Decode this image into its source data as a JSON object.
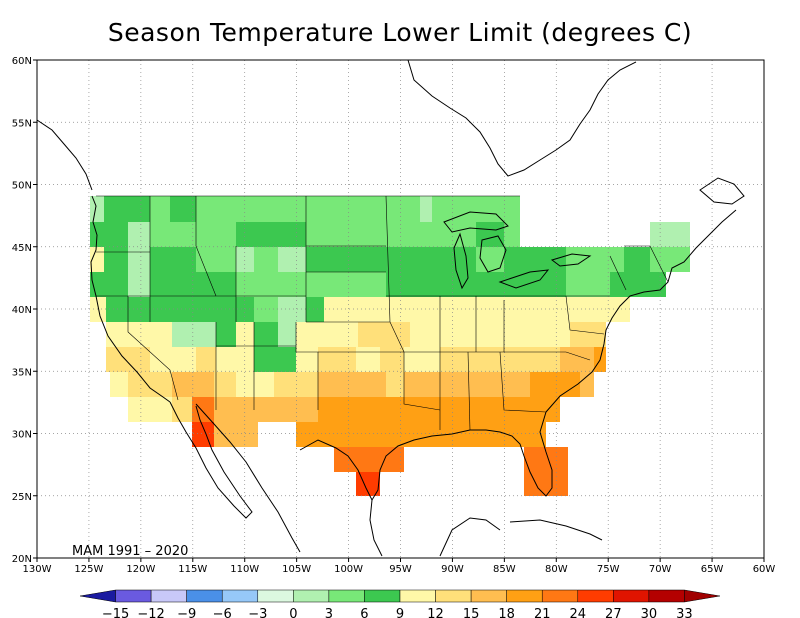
{
  "title": "Season Temperature Lower Limit (degrees C)",
  "period_label": "MAM 1991 – 2020",
  "lon_ticks": [
    "130W",
    "125W",
    "120W",
    "115W",
    "110W",
    "105W",
    "100W",
    "95W",
    "90W",
    "85W",
    "80W",
    "75W",
    "70W",
    "65W",
    "60W"
  ],
  "lat_ticks": [
    "60N",
    "55N",
    "50N",
    "45N",
    "40N",
    "35N",
    "30N",
    "25N",
    "20N"
  ],
  "colorbar": {
    "labels": [
      "-15",
      "-12",
      "-9",
      "-6",
      "-3",
      "0",
      "3",
      "6",
      "9",
      "12",
      "15",
      "18",
      "21",
      "24",
      "27",
      "30",
      "33"
    ],
    "colors": [
      "#1a1aa0",
      "#6a5ae0",
      "#c8c8f8",
      "#4a90e8",
      "#96c8f8",
      "#dcf8e0",
      "#b0f0b0",
      "#78e878",
      "#3cc850",
      "#fff8a8",
      "#ffe07a",
      "#ffbe50",
      "#ffa014",
      "#ff7814",
      "#ff3c00",
      "#e01400",
      "#b40000",
      "#a00000"
    ]
  },
  "chart_data": {
    "type": "heatmap",
    "title": "Season Temperature Lower Limit (degrees C)",
    "period": "MAM 1991 – 2020",
    "units": "degrees C",
    "lon_range": [
      -130,
      -60
    ],
    "lat_range": [
      20,
      60
    ],
    "regions": [
      {
        "region": "Northern tier (WA east to ME, north of ~41N)",
        "band": "3 to 9"
      },
      {
        "region": "Northern Rockies / Great Plains core",
        "band": "6 to 9"
      },
      {
        "region": "Pacific NW coast / Great Lakes edges",
        "band": "3 to 6"
      },
      {
        "region": "Central US / Mid-Atlantic / California coast",
        "band": "9 to 12"
      },
      {
        "region": "Southern plains / Tennessee valley / desert SW",
        "band": "12 to 18"
      },
      {
        "region": "Texas / Gulf Coast / Southeast",
        "band": "18 to 21"
      },
      {
        "region": "South Texas / lower Rio Grande",
        "band": "21 to 24"
      },
      {
        "region": "South Florida",
        "band": "21 to 24"
      }
    ]
  }
}
